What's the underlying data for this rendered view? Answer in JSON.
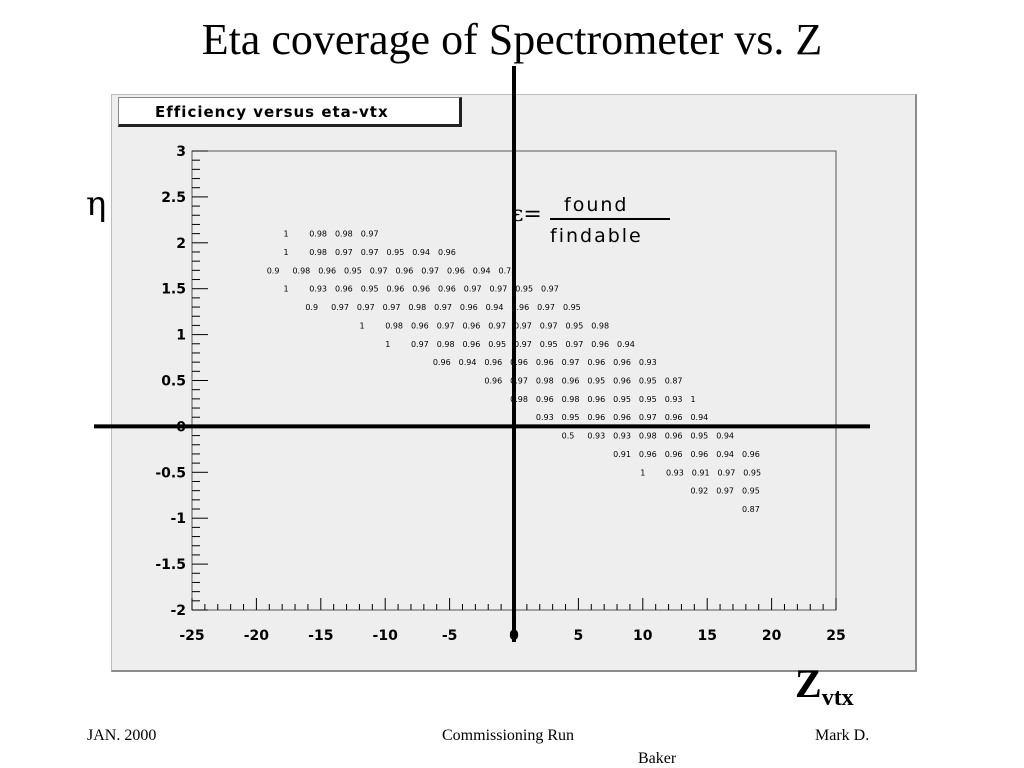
{
  "slide": {
    "title": "Eta coverage of Spectrometer vs. Z",
    "eta_symbol": "η",
    "epsilon_label": "ε=",
    "fraction_numerator": "found",
    "fraction_denominator": "findable",
    "z_main": "Z",
    "z_sub": "vtx",
    "footer_left": "JAN. 2000",
    "footer_center": "Commissioning Run",
    "footer_right": "Mark D.",
    "footer_right_cont": "Baker"
  },
  "chart_data": {
    "type": "table",
    "title": "Efficiency versus eta-vtx",
    "xlim": [
      -25,
      25
    ],
    "ylim": [
      -2,
      3
    ],
    "x_ticks": [
      "-25",
      "-20",
      "-15",
      "-10",
      "-5",
      "0",
      "5",
      "10",
      "15",
      "20",
      "25"
    ],
    "y_ticks": [
      "-2",
      "-1.5",
      "-1",
      "-0.5",
      "0",
      "0.5",
      "1",
      "1.5",
      "2",
      "2.5",
      "3"
    ],
    "grid": false,
    "rows": [
      {
        "y": 2.1,
        "x_start": -17.9,
        "values": [
          "1",
          "0.98",
          "0.98",
          "0.97"
        ]
      },
      {
        "y": 1.9,
        "x_start": -17.9,
        "values": [
          "1",
          "0.98",
          "0.97",
          "0.97",
          "0.95",
          "0.94",
          "0.96"
        ]
      },
      {
        "y": 1.7,
        "x_start": -19.2,
        "values": [
          "0.9",
          "0.98",
          "0.96",
          "0.95",
          "0.97",
          "0.96",
          "0.97",
          "0.96",
          "0.94",
          "0.75"
        ]
      },
      {
        "y": 1.5,
        "x_start": -17.9,
        "values": [
          "1",
          "0.93",
          "0.96",
          "0.95",
          "0.96",
          "0.96",
          "0.96",
          "0.97",
          "0.97",
          "0.95",
          "0.97"
        ]
      },
      {
        "y": 1.3,
        "x_start": -16.2,
        "values": [
          "0.9",
          "0.97",
          "0.97",
          "0.97",
          "0.98",
          "0.97",
          "0.96",
          "0.94",
          "0.96",
          "0.97",
          "0.95"
        ]
      },
      {
        "y": 1.1,
        "x_start": -12.0,
        "values": [
          "1",
          "0.98",
          "0.96",
          "0.97",
          "0.96",
          "0.97",
          "0.97",
          "0.97",
          "0.95",
          "0.98"
        ]
      },
      {
        "y": 0.9,
        "x_start": -10.0,
        "values": [
          "1",
          "0.97",
          "0.98",
          "0.96",
          "0.95",
          "0.97",
          "0.95",
          "0.97",
          "0.96",
          "0.94"
        ]
      },
      {
        "y": 0.7,
        "x_start": -6.3,
        "values": [
          "0.96",
          "0.94",
          "0.96",
          "0.96",
          "0.96",
          "0.97",
          "0.96",
          "0.96",
          "0.93"
        ]
      },
      {
        "y": 0.5,
        "x_start": -2.3,
        "values": [
          "0.96",
          "0.97",
          "0.98",
          "0.96",
          "0.95",
          "0.96",
          "0.95",
          "0.87"
        ]
      },
      {
        "y": 0.3,
        "x_start": -0.3,
        "values": [
          "0.98",
          "0.96",
          "0.98",
          "0.96",
          "0.95",
          "0.95",
          "0.93",
          "1"
        ]
      },
      {
        "y": 0.1,
        "x_start": 1.7,
        "values": [
          "0.93",
          "0.95",
          "0.96",
          "0.96",
          "0.97",
          "0.96",
          "0.94"
        ]
      },
      {
        "y": -0.1,
        "x_start": 3.7,
        "values": [
          "0.5",
          "0.93",
          "0.93",
          "0.98",
          "0.96",
          "0.95",
          "0.94"
        ]
      },
      {
        "y": -0.3,
        "x_start": 7.7,
        "values": [
          "0.91",
          "0.96",
          "0.96",
          "0.96",
          "0.94",
          "0.96"
        ]
      },
      {
        "y": -0.5,
        "x_start": 9.8,
        "values": [
          "1",
          "0.93",
          "0.91",
          "0.97",
          "0.95"
        ]
      },
      {
        "y": -0.7,
        "x_start": 13.7,
        "values": [
          "0.92",
          "0.97",
          "0.95"
        ]
      },
      {
        "y": -0.9,
        "x_start": 17.7,
        "values": [
          "0.87"
        ]
      }
    ]
  }
}
